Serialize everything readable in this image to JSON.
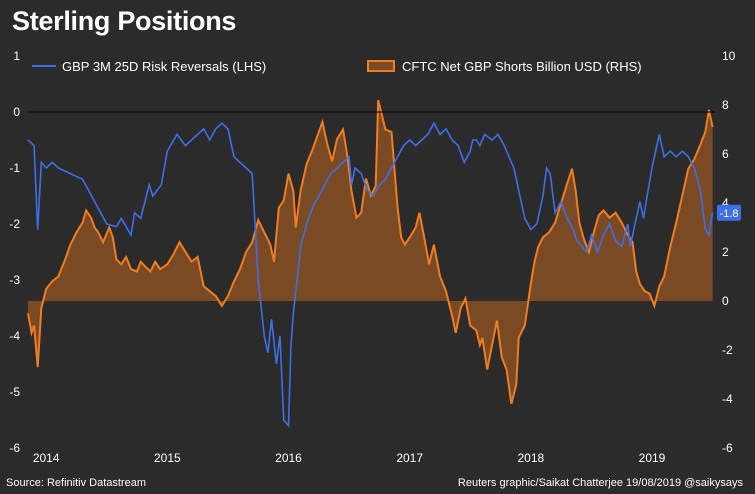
{
  "title": "Sterling Positions",
  "source": "Source: Refinitiv Datastream",
  "credit": "Reuters graphic/Saikat Chatterjee 19/08/2019 @saikysays",
  "colors": {
    "background": "#2b2b2b",
    "lhs_line": "#3d6fe8",
    "rhs_line": "#f07d22",
    "rhs_fill": "#7a4a24",
    "zero_line": "#000000",
    "badge": "#3d6fe8"
  },
  "chart_data": {
    "type": "line",
    "x_range": [
      2013.85,
      2019.52
    ],
    "x_ticks": [
      {
        "x": 2014.0,
        "label": "2014"
      },
      {
        "x": 2015.0,
        "label": "2015"
      },
      {
        "x": 2016.0,
        "label": "2016"
      },
      {
        "x": 2017.0,
        "label": "2017"
      },
      {
        "x": 2018.0,
        "label": "2018"
      },
      {
        "x": 2019.0,
        "label": "2019"
      }
    ],
    "y_left": {
      "range": [
        -6,
        1
      ],
      "ticks": [
        1,
        0,
        -1,
        -2,
        -3,
        -4,
        -5,
        -6
      ]
    },
    "y_right": {
      "range": [
        -6,
        10
      ],
      "ticks": [
        10,
        8,
        6,
        4,
        2,
        0,
        -2,
        -4,
        -6
      ]
    },
    "last_value_label": "-1.8",
    "last_value": -1.8,
    "series": [
      {
        "name": "GBP 3M 25D Risk Reversals (LHS)",
        "axis": "left",
        "style": "line",
        "points": [
          [
            2013.85,
            -0.5
          ],
          [
            2013.9,
            -0.6
          ],
          [
            2013.93,
            -2.1
          ],
          [
            2013.96,
            -0.9
          ],
          [
            2014.0,
            -1.0
          ],
          [
            2014.05,
            -0.9
          ],
          [
            2014.1,
            -1.0
          ],
          [
            2014.2,
            -1.1
          ],
          [
            2014.3,
            -1.2
          ],
          [
            2014.35,
            -1.4
          ],
          [
            2014.4,
            -1.6
          ],
          [
            2014.45,
            -1.8
          ],
          [
            2014.5,
            -2.0
          ],
          [
            2014.58,
            -2.05
          ],
          [
            2014.62,
            -1.9
          ],
          [
            2014.7,
            -2.2
          ],
          [
            2014.73,
            -1.8
          ],
          [
            2014.78,
            -1.9
          ],
          [
            2014.85,
            -1.3
          ],
          [
            2014.88,
            -1.5
          ],
          [
            2014.95,
            -1.3
          ],
          [
            2015.0,
            -0.7
          ],
          [
            2015.08,
            -0.4
          ],
          [
            2015.15,
            -0.6
          ],
          [
            2015.2,
            -0.5
          ],
          [
            2015.25,
            -0.4
          ],
          [
            2015.3,
            -0.3
          ],
          [
            2015.35,
            -0.5
          ],
          [
            2015.4,
            -0.3
          ],
          [
            2015.45,
            -0.2
          ],
          [
            2015.5,
            -0.3
          ],
          [
            2015.55,
            -0.8
          ],
          [
            2015.6,
            -0.9
          ],
          [
            2015.65,
            -1.0
          ],
          [
            2015.7,
            -1.1
          ],
          [
            2015.75,
            -3.0
          ],
          [
            2015.8,
            -4.0
          ],
          [
            2015.83,
            -4.3
          ],
          [
            2015.86,
            -3.7
          ],
          [
            2015.9,
            -4.5
          ],
          [
            2015.93,
            -4.0
          ],
          [
            2015.96,
            -5.5
          ],
          [
            2016.0,
            -5.6
          ],
          [
            2016.02,
            -4.2
          ],
          [
            2016.04,
            -3.6
          ],
          [
            2016.06,
            -3.2
          ],
          [
            2016.08,
            -2.8
          ],
          [
            2016.1,
            -2.4
          ],
          [
            2016.15,
            -2.0
          ],
          [
            2016.2,
            -1.7
          ],
          [
            2016.25,
            -1.5
          ],
          [
            2016.3,
            -1.3
          ],
          [
            2016.35,
            -1.1
          ],
          [
            2016.4,
            -1.0
          ],
          [
            2016.45,
            -0.9
          ],
          [
            2016.5,
            -0.8
          ],
          [
            2016.52,
            -1.3
          ],
          [
            2016.55,
            -1.0
          ],
          [
            2016.6,
            -1.1
          ],
          [
            2016.65,
            -1.4
          ],
          [
            2016.7,
            -1.5
          ],
          [
            2016.75,
            -1.3
          ],
          [
            2016.8,
            -1.2
          ],
          [
            2016.85,
            -1.0
          ],
          [
            2016.9,
            -0.8
          ],
          [
            2016.95,
            -0.6
          ],
          [
            2017.0,
            -0.5
          ],
          [
            2017.05,
            -0.6
          ],
          [
            2017.1,
            -0.5
          ],
          [
            2017.15,
            -0.4
          ],
          [
            2017.2,
            -0.2
          ],
          [
            2017.25,
            -0.4
          ],
          [
            2017.3,
            -0.3
          ],
          [
            2017.35,
            -0.5
          ],
          [
            2017.4,
            -0.6
          ],
          [
            2017.45,
            -0.9
          ],
          [
            2017.5,
            -0.7
          ],
          [
            2017.52,
            -0.5
          ],
          [
            2017.55,
            -0.5
          ],
          [
            2017.58,
            -0.6
          ],
          [
            2017.62,
            -0.4
          ],
          [
            2017.68,
            -0.5
          ],
          [
            2017.73,
            -0.4
          ],
          [
            2017.78,
            -0.6
          ],
          [
            2017.82,
            -0.8
          ],
          [
            2017.86,
            -1.0
          ],
          [
            2017.9,
            -1.4
          ],
          [
            2017.95,
            -1.9
          ],
          [
            2018.0,
            -2.1
          ],
          [
            2018.05,
            -2.0
          ],
          [
            2018.1,
            -1.5
          ],
          [
            2018.13,
            -1.0
          ],
          [
            2018.16,
            -1.1
          ],
          [
            2018.2,
            -1.8
          ],
          [
            2018.25,
            -1.6
          ],
          [
            2018.3,
            -1.9
          ],
          [
            2018.35,
            -2.1
          ],
          [
            2018.38,
            -2.3
          ],
          [
            2018.42,
            -2.4
          ],
          [
            2018.46,
            -2.5
          ],
          [
            2018.5,
            -2.2
          ],
          [
            2018.55,
            -2.5
          ],
          [
            2018.6,
            -2.2
          ],
          [
            2018.65,
            -2.0
          ],
          [
            2018.7,
            -2.3
          ],
          [
            2018.75,
            -2.4
          ],
          [
            2018.8,
            -2.0
          ],
          [
            2018.82,
            -2.4
          ],
          [
            2018.86,
            -2.0
          ],
          [
            2018.9,
            -1.6
          ],
          [
            2018.93,
            -1.9
          ],
          [
            2018.96,
            -1.5
          ],
          [
            2019.0,
            -1.0
          ],
          [
            2019.03,
            -0.7
          ],
          [
            2019.06,
            -0.4
          ],
          [
            2019.1,
            -0.8
          ],
          [
            2019.15,
            -0.7
          ],
          [
            2019.2,
            -0.8
          ],
          [
            2019.25,
            -0.7
          ],
          [
            2019.3,
            -0.8
          ],
          [
            2019.35,
            -1.0
          ],
          [
            2019.4,
            -1.4
          ],
          [
            2019.44,
            -2.1
          ],
          [
            2019.47,
            -2.2
          ],
          [
            2019.5,
            -1.8
          ]
        ]
      },
      {
        "name": "CFTC Net GBP Shorts Billion USD (RHS)",
        "axis": "right",
        "style": "area",
        "points": [
          [
            2013.85,
            -0.5
          ],
          [
            2013.88,
            -1.3
          ],
          [
            2013.9,
            -1.0
          ],
          [
            2013.93,
            -2.7
          ],
          [
            2013.96,
            -0.3
          ],
          [
            2014.0,
            0.5
          ],
          [
            2014.05,
            0.8
          ],
          [
            2014.1,
            1.0
          ],
          [
            2014.15,
            1.6
          ],
          [
            2014.2,
            2.3
          ],
          [
            2014.25,
            2.8
          ],
          [
            2014.3,
            3.2
          ],
          [
            2014.33,
            3.7
          ],
          [
            2014.37,
            3.4
          ],
          [
            2014.4,
            3.0
          ],
          [
            2014.43,
            2.8
          ],
          [
            2014.47,
            2.4
          ],
          [
            2014.52,
            3.0
          ],
          [
            2014.55,
            2.6
          ],
          [
            2014.58,
            1.7
          ],
          [
            2014.62,
            1.5
          ],
          [
            2014.66,
            1.8
          ],
          [
            2014.7,
            1.3
          ],
          [
            2014.75,
            1.2
          ],
          [
            2014.78,
            1.6
          ],
          [
            2014.82,
            1.4
          ],
          [
            2014.86,
            1.2
          ],
          [
            2014.9,
            1.6
          ],
          [
            2014.94,
            1.3
          ],
          [
            2015.0,
            1.5
          ],
          [
            2015.05,
            1.9
          ],
          [
            2015.1,
            2.4
          ],
          [
            2015.15,
            2.0
          ],
          [
            2015.2,
            1.6
          ],
          [
            2015.25,
            1.8
          ],
          [
            2015.3,
            0.6
          ],
          [
            2015.35,
            0.4
          ],
          [
            2015.4,
            0.2
          ],
          [
            2015.45,
            -0.2
          ],
          [
            2015.5,
            0.2
          ],
          [
            2015.55,
            0.8
          ],
          [
            2015.6,
            1.3
          ],
          [
            2015.65,
            2.0
          ],
          [
            2015.7,
            2.4
          ],
          [
            2015.75,
            3.3
          ],
          [
            2015.8,
            2.8
          ],
          [
            2015.85,
            2.3
          ],
          [
            2015.88,
            1.6
          ],
          [
            2015.92,
            3.8
          ],
          [
            2015.96,
            4.1
          ],
          [
            2016.0,
            5.2
          ],
          [
            2016.04,
            4.5
          ],
          [
            2016.06,
            3.0
          ],
          [
            2016.1,
            4.5
          ],
          [
            2016.15,
            5.6
          ],
          [
            2016.2,
            6.2
          ],
          [
            2016.25,
            6.9
          ],
          [
            2016.28,
            7.3
          ],
          [
            2016.32,
            6.4
          ],
          [
            2016.36,
            5.7
          ],
          [
            2016.4,
            6.6
          ],
          [
            2016.45,
            7.0
          ],
          [
            2016.48,
            6.1
          ],
          [
            2016.52,
            4.5
          ],
          [
            2016.56,
            3.4
          ],
          [
            2016.6,
            3.6
          ],
          [
            2016.64,
            5.0
          ],
          [
            2016.68,
            4.3
          ],
          [
            2016.72,
            4.7
          ],
          [
            2016.74,
            8.2
          ],
          [
            2016.77,
            7.6
          ],
          [
            2016.8,
            7.0
          ],
          [
            2016.85,
            6.9
          ],
          [
            2016.9,
            3.8
          ],
          [
            2016.93,
            2.6
          ],
          [
            2016.96,
            2.3
          ],
          [
            2017.0,
            2.6
          ],
          [
            2017.05,
            3.0
          ],
          [
            2017.08,
            3.6
          ],
          [
            2017.12,
            2.6
          ],
          [
            2017.16,
            1.5
          ],
          [
            2017.2,
            2.3
          ],
          [
            2017.25,
            1.0
          ],
          [
            2017.3,
            0.4
          ],
          [
            2017.35,
            -0.6
          ],
          [
            2017.38,
            -1.3
          ],
          [
            2017.42,
            -0.3
          ],
          [
            2017.46,
            0.1
          ],
          [
            2017.5,
            -1.0
          ],
          [
            2017.55,
            -1.2
          ],
          [
            2017.58,
            -1.8
          ],
          [
            2017.6,
            -1.5
          ],
          [
            2017.64,
            -2.8
          ],
          [
            2017.68,
            -1.8
          ],
          [
            2017.72,
            -0.8
          ],
          [
            2017.76,
            -2.3
          ],
          [
            2017.8,
            -2.8
          ],
          [
            2017.84,
            -4.2
          ],
          [
            2017.88,
            -3.4
          ],
          [
            2017.9,
            -1.5
          ],
          [
            2017.95,
            -1.0
          ],
          [
            2018.0,
            0.7
          ],
          [
            2018.03,
            1.6
          ],
          [
            2018.06,
            2.2
          ],
          [
            2018.1,
            2.6
          ],
          [
            2018.15,
            2.8
          ],
          [
            2018.2,
            3.2
          ],
          [
            2018.25,
            4.0
          ],
          [
            2018.3,
            4.8
          ],
          [
            2018.34,
            5.4
          ],
          [
            2018.37,
            4.5
          ],
          [
            2018.4,
            3.2
          ],
          [
            2018.44,
            2.5
          ],
          [
            2018.48,
            2.0
          ],
          [
            2018.52,
            2.8
          ],
          [
            2018.56,
            3.5
          ],
          [
            2018.6,
            3.7
          ],
          [
            2018.65,
            3.4
          ],
          [
            2018.7,
            3.6
          ],
          [
            2018.75,
            3.2
          ],
          [
            2018.8,
            2.7
          ],
          [
            2018.84,
            2.4
          ],
          [
            2018.87,
            1.2
          ],
          [
            2018.9,
            0.7
          ],
          [
            2018.94,
            0.4
          ],
          [
            2018.98,
            0.3
          ],
          [
            2019.02,
            -0.2
          ],
          [
            2019.06,
            0.6
          ],
          [
            2019.1,
            1.0
          ],
          [
            2019.15,
            2.2
          ],
          [
            2019.2,
            3.2
          ],
          [
            2019.25,
            4.3
          ],
          [
            2019.3,
            5.4
          ],
          [
            2019.35,
            5.8
          ],
          [
            2019.4,
            6.4
          ],
          [
            2019.44,
            6.9
          ],
          [
            2019.47,
            7.8
          ],
          [
            2019.5,
            7.1
          ]
        ]
      }
    ]
  }
}
